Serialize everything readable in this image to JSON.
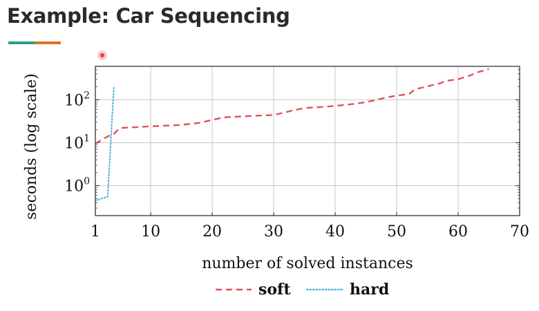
{
  "slide": {
    "title": "Example: Car Sequencing",
    "underline_colors": [
      "#2a9d8f",
      "#e07020"
    ]
  },
  "chart_data": {
    "type": "line",
    "title": "",
    "xlabel": "number of solved instances",
    "ylabel": "seconds (log scale)",
    "xlim": [
      1,
      70
    ],
    "ylim": [
      0.2,
      600
    ],
    "yscale": "log",
    "grid": true,
    "legend_position": "bottom-center",
    "xticks": [
      1,
      10,
      20,
      30,
      40,
      50,
      60,
      70
    ],
    "yticks": [
      {
        "base": "10",
        "exp": "0",
        "value": 1
      },
      {
        "base": "10",
        "exp": "1",
        "value": 10
      },
      {
        "base": "10",
        "exp": "2",
        "value": 100
      }
    ],
    "series": [
      {
        "name": "soft",
        "color": "#e0505a",
        "style": "dashed",
        "x": [
          1,
          3,
          4,
          5,
          10,
          15,
          18,
          20,
          22,
          25,
          28,
          30,
          33,
          35,
          38,
          40,
          43,
          45,
          48,
          50,
          52,
          53,
          55,
          57,
          58,
          60,
          62,
          63,
          65
        ],
        "y": [
          9.5,
          14,
          16,
          22,
          24,
          26,
          29,
          34,
          39,
          41,
          43,
          44,
          56,
          64,
          68,
          72,
          80,
          88,
          110,
          125,
          135,
          175,
          205,
          240,
          275,
          300,
          370,
          430,
          520
        ]
      },
      {
        "name": "hard",
        "color": "#5ab4e0",
        "style": "dotted",
        "x": [
          1,
          2,
          3,
          4
        ],
        "y": [
          0.45,
          0.5,
          0.55,
          190
        ]
      }
    ]
  }
}
